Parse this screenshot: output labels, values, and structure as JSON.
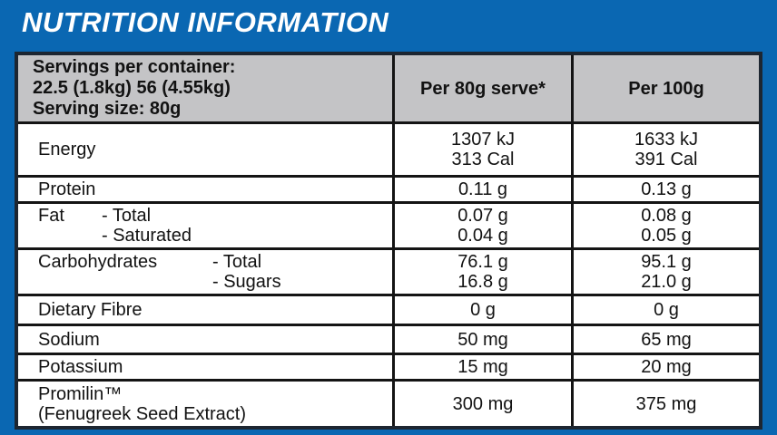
{
  "title": "NUTRITION INFORMATION",
  "colors": {
    "background_blue": "#0a67b2",
    "header_gray": "#c4c4c6",
    "outer_border": "#1d2631",
    "inner_border": "#141414",
    "cell_white": "#ffffff",
    "text_dark": "#121212",
    "title_white": "#ffffff"
  },
  "table": {
    "header": {
      "servings_lines": [
        "Servings per container:",
        "22.5 (1.8kg) 56 (4.55kg)",
        "Serving size: 80g"
      ],
      "col_serve": "Per 80g serve*",
      "col_100g": "Per 100g"
    },
    "rows": [
      {
        "label": "Energy",
        "per_serve": [
          "1307 kJ",
          "313 Cal"
        ],
        "per_100g": [
          "1633 kJ",
          "391 Cal"
        ]
      },
      {
        "label": "Protein",
        "per_serve": [
          "0.11 g"
        ],
        "per_100g": [
          "0.13 g"
        ]
      },
      {
        "label": "Fat",
        "sub_labels": [
          "- Total",
          "- Saturated"
        ],
        "name_col": "narrow",
        "per_serve": [
          "0.07 g",
          "0.04 g"
        ],
        "per_100g": [
          "0.08 g",
          "0.05 g"
        ]
      },
      {
        "label": "Carbohydrates",
        "sub_labels": [
          "- Total",
          "- Sugars"
        ],
        "name_col": "wide",
        "per_serve": [
          "76.1 g",
          "16.8 g"
        ],
        "per_100g": [
          "95.1 g",
          "21.0 g"
        ]
      },
      {
        "label": "Dietary Fibre",
        "per_serve": [
          "0 g"
        ],
        "per_100g": [
          "0 g"
        ]
      },
      {
        "label": "Sodium",
        "per_serve": [
          "50 mg"
        ],
        "per_100g": [
          "65 mg"
        ]
      },
      {
        "label": "Potassium",
        "per_serve": [
          "15 mg"
        ],
        "per_100g": [
          "20 mg"
        ]
      },
      {
        "label": "Promilin™",
        "label_line2": "(Fenugreek Seed Extract)",
        "per_serve": [
          "300 mg"
        ],
        "per_100g": [
          "375 mg"
        ]
      }
    ]
  }
}
